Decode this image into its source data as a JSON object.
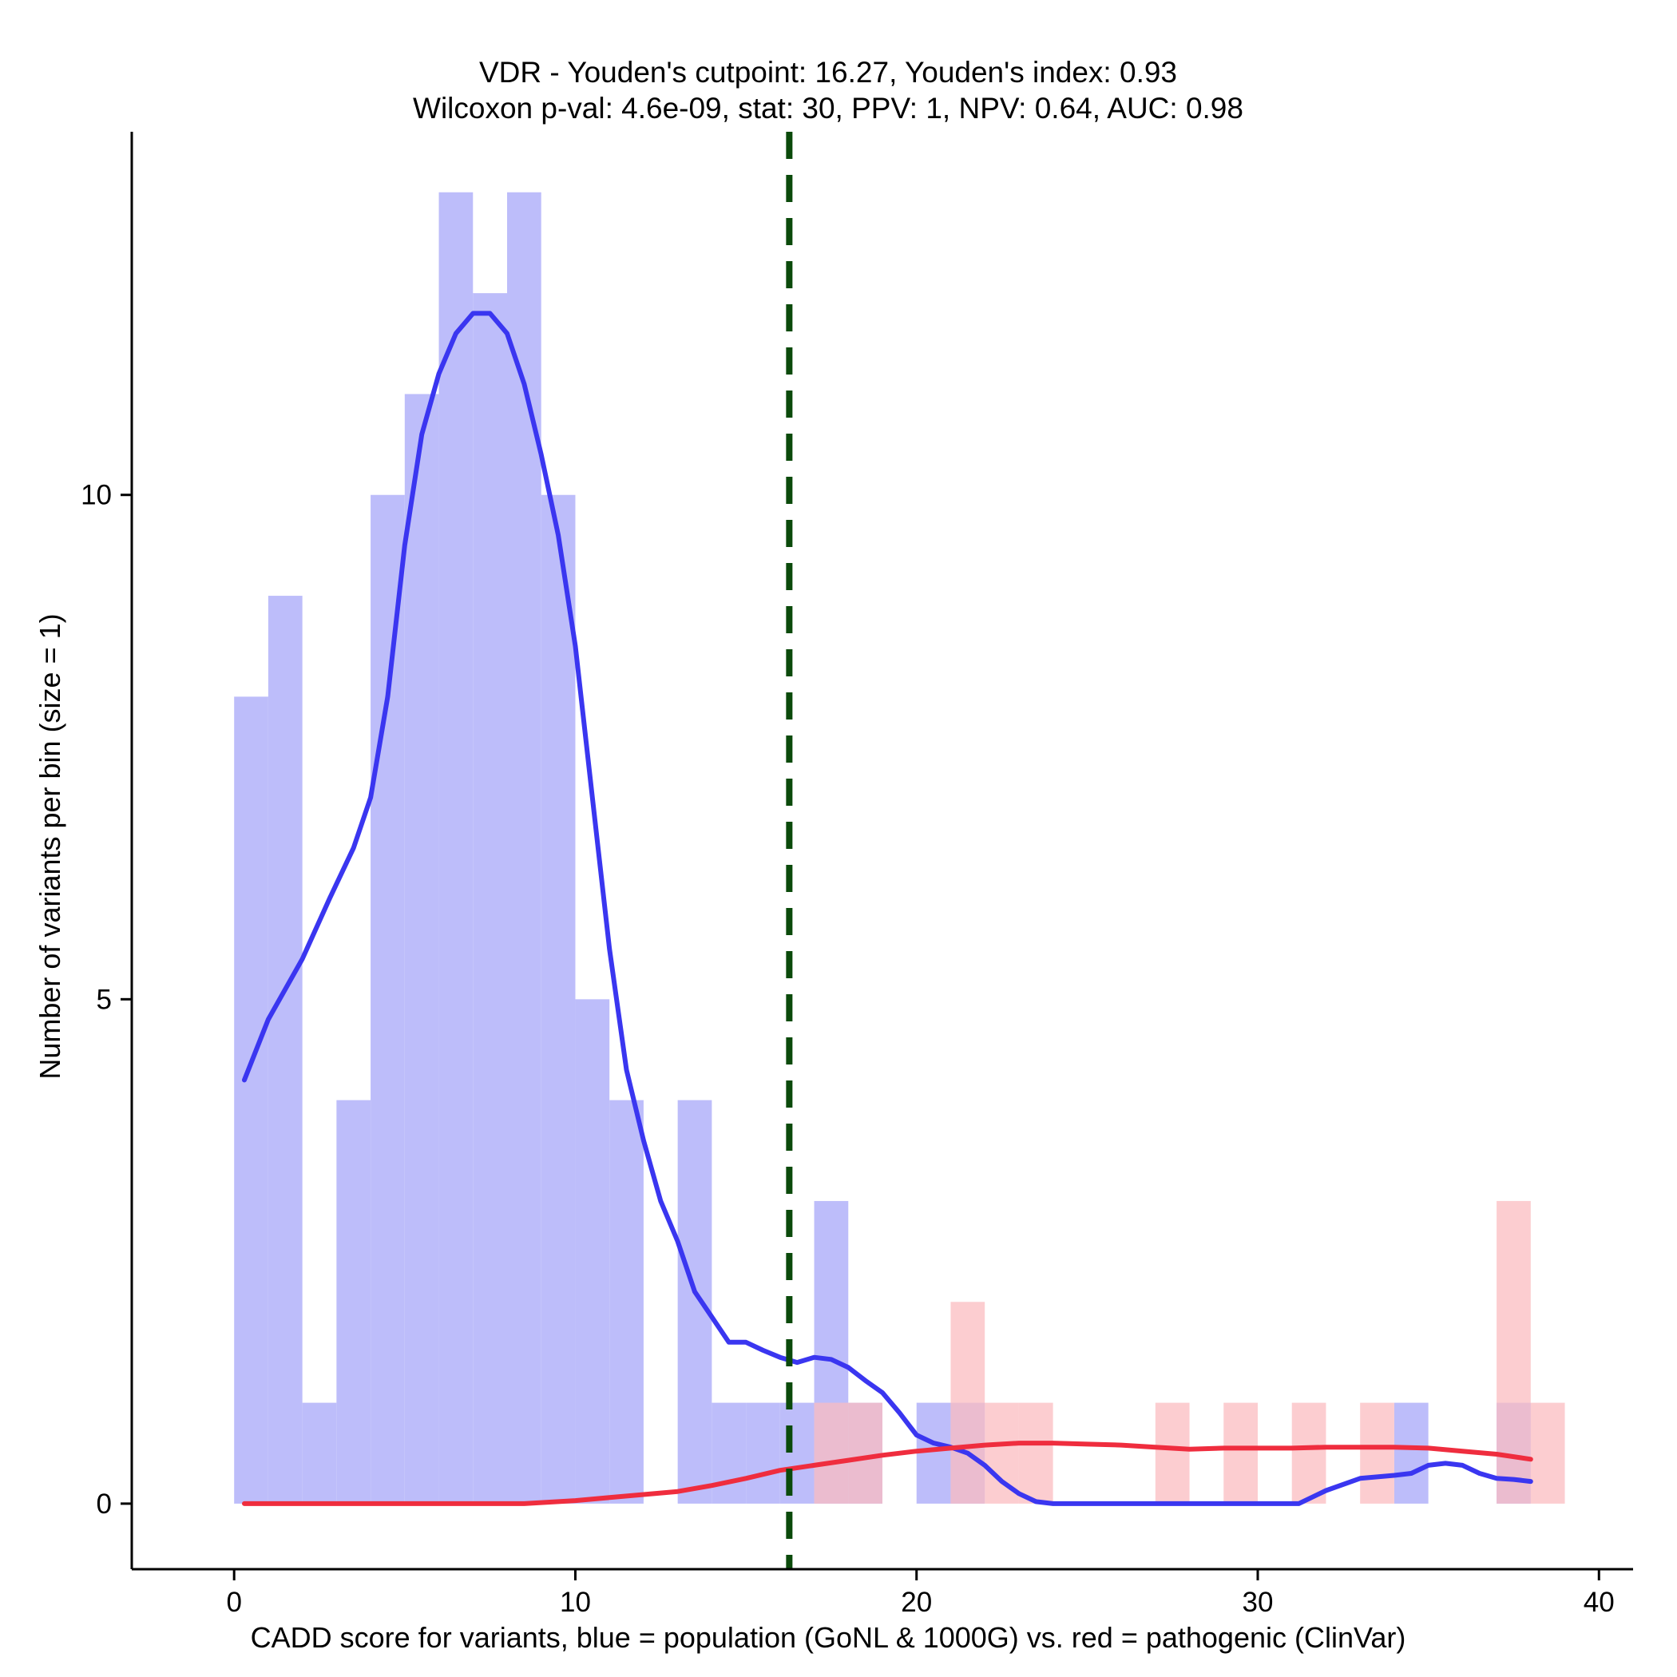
{
  "chart_data": {
    "type": "bar",
    "title": "VDR - Youden's cutpoint: 16.27, Youden's index: 0.93",
    "subtitle": "Wilcoxon p-val: 4.6e-09, stat: 30, PPV: 1, NPV: 0.64, AUC: 0.98",
    "xlabel": "CADD score for variants, blue = population (GoNL & 1000G) vs. red = pathogenic (ClinVar)",
    "ylabel": "Number of variants per bin (size = 1)",
    "xlim": [
      -3,
      41
    ],
    "ylim": [
      -0.65,
      13.6
    ],
    "xticks": [
      0,
      10,
      20,
      30,
      40
    ],
    "yticks": [
      0,
      5,
      10
    ],
    "bin_size": 1,
    "cutpoint": 16.27,
    "colors": {
      "population_bar": "#bdbdfa",
      "pathogenic_bar": "#fbbcc0",
      "population_curve": "#3a36f0",
      "pathogenic_curve": "#ef2d3e",
      "cutpoint_line": "#0b4a0b",
      "axis": "#000000"
    },
    "series": [
      {
        "name": "population (GoNL & 1000G)",
        "bins": [
          {
            "start": 0,
            "count": 8
          },
          {
            "start": 1,
            "count": 9
          },
          {
            "start": 2,
            "count": 1
          },
          {
            "start": 3,
            "count": 4
          },
          {
            "start": 4,
            "count": 10
          },
          {
            "start": 5,
            "count": 11
          },
          {
            "start": 6,
            "count": 13
          },
          {
            "start": 7,
            "count": 12
          },
          {
            "start": 8,
            "count": 13
          },
          {
            "start": 9,
            "count": 10
          },
          {
            "start": 10,
            "count": 5
          },
          {
            "start": 11,
            "count": 4
          },
          {
            "start": 13,
            "count": 4
          },
          {
            "start": 14,
            "count": 1
          },
          {
            "start": 15,
            "count": 1
          },
          {
            "start": 16,
            "count": 1
          },
          {
            "start": 17,
            "count": 3
          },
          {
            "start": 18,
            "count": 1
          },
          {
            "start": 20,
            "count": 1
          },
          {
            "start": 21,
            "count": 1
          },
          {
            "start": 34,
            "count": 1
          },
          {
            "start": 37,
            "count": 1
          }
        ],
        "density": [
          [
            0.3,
            4.2
          ],
          [
            1.0,
            4.8
          ],
          [
            2.0,
            5.4
          ],
          [
            2.8,
            6.0
          ],
          [
            3.5,
            6.5
          ],
          [
            4.0,
            7.0
          ],
          [
            4.5,
            8.0
          ],
          [
            5.0,
            9.5
          ],
          [
            5.5,
            10.6
          ],
          [
            6.0,
            11.2
          ],
          [
            6.5,
            11.6
          ],
          [
            7.0,
            11.8
          ],
          [
            7.5,
            11.8
          ],
          [
            8.0,
            11.6
          ],
          [
            8.5,
            11.1
          ],
          [
            9.0,
            10.4
          ],
          [
            9.5,
            9.6
          ],
          [
            10.0,
            8.5
          ],
          [
            10.5,
            7.0
          ],
          [
            11.0,
            5.5
          ],
          [
            11.5,
            4.3
          ],
          [
            12.0,
            3.6
          ],
          [
            12.5,
            3.0
          ],
          [
            13.0,
            2.6
          ],
          [
            13.5,
            2.1
          ],
          [
            14.0,
            1.85
          ],
          [
            14.5,
            1.6
          ],
          [
            15.0,
            1.6
          ],
          [
            15.5,
            1.52
          ],
          [
            16.0,
            1.45
          ],
          [
            16.5,
            1.4
          ],
          [
            17.0,
            1.45
          ],
          [
            17.5,
            1.43
          ],
          [
            18.0,
            1.35
          ],
          [
            18.5,
            1.22
          ],
          [
            19.0,
            1.1
          ],
          [
            19.5,
            0.9
          ],
          [
            20.0,
            0.68
          ],
          [
            20.5,
            0.6
          ],
          [
            21.0,
            0.56
          ],
          [
            21.5,
            0.5
          ],
          [
            22.0,
            0.38
          ],
          [
            22.5,
            0.22
          ],
          [
            23.0,
            0.1
          ],
          [
            23.5,
            0.02
          ],
          [
            24.0,
            0.0
          ],
          [
            26.0,
            0.0
          ],
          [
            28.0,
            0.0
          ],
          [
            30.0,
            0.0
          ],
          [
            31.2,
            0.0
          ],
          [
            32.0,
            0.13
          ],
          [
            33.0,
            0.25
          ],
          [
            34.0,
            0.28
          ],
          [
            34.5,
            0.3
          ],
          [
            35.0,
            0.38
          ],
          [
            35.5,
            0.4
          ],
          [
            36.0,
            0.38
          ],
          [
            36.5,
            0.3
          ],
          [
            37.0,
            0.25
          ],
          [
            37.5,
            0.24
          ],
          [
            38.0,
            0.22
          ]
        ]
      },
      {
        "name": "pathogenic (ClinVar)",
        "bins": [
          {
            "start": 17,
            "count": 1
          },
          {
            "start": 18,
            "count": 1
          },
          {
            "start": 21,
            "count": 2
          },
          {
            "start": 22,
            "count": 1
          },
          {
            "start": 23,
            "count": 1
          },
          {
            "start": 27,
            "count": 1
          },
          {
            "start": 29,
            "count": 1
          },
          {
            "start": 31,
            "count": 1
          },
          {
            "start": 33,
            "count": 1
          },
          {
            "start": 37,
            "count": 3
          },
          {
            "start": 38,
            "count": 1
          }
        ],
        "density": [
          [
            0.3,
            0.0
          ],
          [
            5.0,
            0.0
          ],
          [
            8.5,
            0.0
          ],
          [
            10.0,
            0.03
          ],
          [
            11.0,
            0.06
          ],
          [
            12.0,
            0.09
          ],
          [
            13.0,
            0.12
          ],
          [
            14.0,
            0.18
          ],
          [
            15.0,
            0.25
          ],
          [
            16.0,
            0.33
          ],
          [
            17.0,
            0.38
          ],
          [
            18.0,
            0.43
          ],
          [
            19.0,
            0.48
          ],
          [
            20.0,
            0.52
          ],
          [
            21.0,
            0.55
          ],
          [
            22.0,
            0.58
          ],
          [
            23.0,
            0.6
          ],
          [
            24.0,
            0.6
          ],
          [
            25.0,
            0.59
          ],
          [
            26.0,
            0.58
          ],
          [
            27.0,
            0.56
          ],
          [
            28.0,
            0.54
          ],
          [
            29.0,
            0.55
          ],
          [
            30.0,
            0.55
          ],
          [
            31.0,
            0.55
          ],
          [
            32.0,
            0.56
          ],
          [
            33.0,
            0.56
          ],
          [
            34.0,
            0.56
          ],
          [
            35.0,
            0.55
          ],
          [
            36.0,
            0.52
          ],
          [
            37.0,
            0.49
          ],
          [
            38.0,
            0.44
          ]
        ]
      }
    ]
  }
}
